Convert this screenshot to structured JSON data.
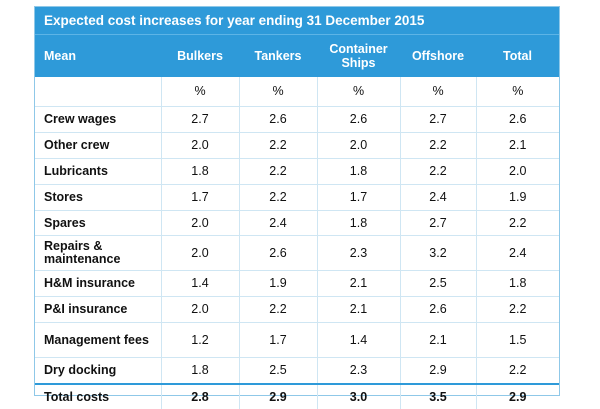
{
  "table": {
    "title": "Expected cost increases for year ending 31 December 2015",
    "columns": [
      "Mean",
      "Bulkers",
      "Tankers",
      "Container Ships",
      "Offshore",
      "Total"
    ],
    "units": [
      "",
      "%",
      "%",
      "%",
      "%",
      "%"
    ],
    "rows": [
      {
        "label": "Crew wages",
        "values": [
          "2.7",
          "2.6",
          "2.6",
          "2.7",
          "2.6"
        ]
      },
      {
        "label": "Other crew",
        "values": [
          "2.0",
          "2.2",
          "2.0",
          "2.2",
          "2.1"
        ]
      },
      {
        "label": "Lubricants",
        "values": [
          "1.8",
          "2.2",
          "1.8",
          "2.2",
          "2.0"
        ]
      },
      {
        "label": "Stores",
        "values": [
          "1.7",
          "2.2",
          "1.7",
          "2.4",
          "1.9"
        ]
      },
      {
        "label": "Spares",
        "values": [
          "2.0",
          "2.4",
          "1.8",
          "2.7",
          "2.2"
        ]
      },
      {
        "label": "Repairs & maintenance",
        "values": [
          "2.0",
          "2.6",
          "2.3",
          "3.2",
          "2.4"
        ]
      },
      {
        "label": "H&M insurance",
        "values": [
          "1.4",
          "1.9",
          "2.1",
          "2.5",
          "1.8"
        ]
      },
      {
        "label": "P&I insurance",
        "values": [
          "2.0",
          "2.2",
          "2.1",
          "2.6",
          "2.2"
        ]
      },
      {
        "label": "Management fees",
        "values": [
          "1.2",
          "1.7",
          "1.4",
          "2.1",
          "1.5"
        ]
      },
      {
        "label": "Dry docking",
        "values": [
          "1.8",
          "2.5",
          "2.3",
          "2.9",
          "2.2"
        ]
      }
    ],
    "total": {
      "label": "Total costs",
      "values": [
        "2.8",
        "2.9",
        "3.0",
        "3.5",
        "2.9"
      ]
    }
  },
  "colors": {
    "header": "#2e9ad9",
    "grid": "#cfe6f3",
    "text": "#111111"
  }
}
